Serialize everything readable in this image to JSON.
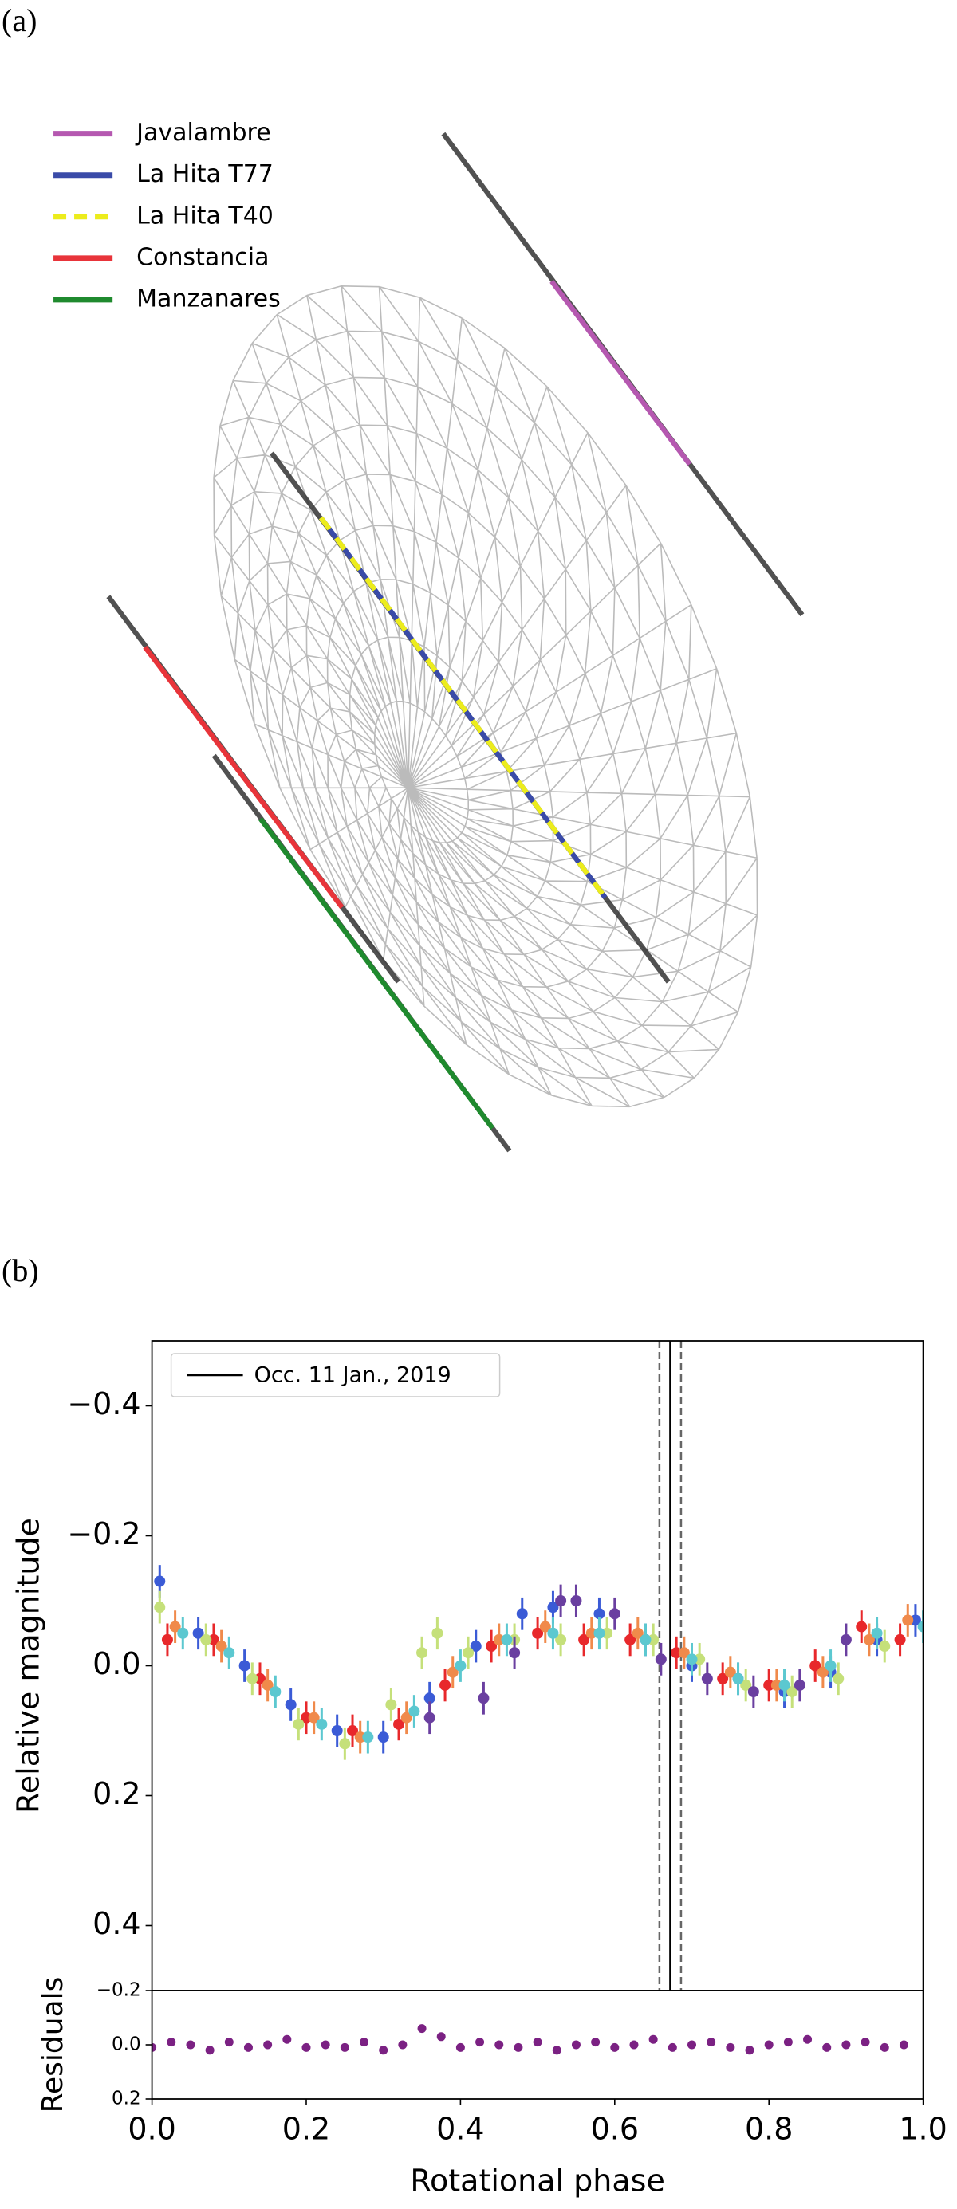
{
  "panel_a": {
    "label": "(a)",
    "legend": [
      {
        "name": "Javalambre",
        "color": "#b558b0",
        "dashed": false
      },
      {
        "name": "La Hita T77",
        "color": "#3a4ba8",
        "dashed": false
      },
      {
        "name": "La Hita T40",
        "color": "#ecec1c",
        "dashed": true
      },
      {
        "name": "Constancia",
        "color": "#e8343a",
        "dashed": false
      },
      {
        "name": "Manzanares",
        "color": "#1f8a2e",
        "dashed": false
      }
    ]
  },
  "chart_data": [
    {
      "type": "scatter",
      "panel_label": "(b)",
      "ylabel": "Relative magnitude",
      "xlim": [
        0,
        1
      ],
      "ylim": [
        0.5,
        -0.5
      ],
      "yticks": [
        {
          "value": -0.4,
          "label": "−0.4"
        },
        {
          "value": -0.2,
          "label": "−0.2"
        },
        {
          "value": 0,
          "label": "0.0"
        },
        0.2,
        0.4
      ],
      "legend": "upper left",
      "occultation": {
        "name": "Occ. 11 Jan., 2019",
        "x": 0.672,
        "x_range": [
          0.658,
          0.686
        ],
        "color": "#000000"
      },
      "series": [
        {
          "color": "#3b5bd6",
          "error": 0.025,
          "x": [
            0.01,
            0.06,
            0.12,
            0.18,
            0.24,
            0.3,
            0.36,
            0.42,
            0.48,
            0.52,
            0.58,
            0.64,
            0.7,
            0.76,
            0.82,
            0.88,
            0.94,
            0.99
          ],
          "values": [
            -0.13,
            -0.05,
            0.0,
            0.06,
            0.1,
            0.11,
            0.05,
            -0.03,
            -0.08,
            -0.09,
            -0.08,
            -0.04,
            0.0,
            0.02,
            0.04,
            0.01,
            -0.04,
            -0.07
          ]
        },
        {
          "color": "#e8282b",
          "error": 0.025,
          "x": [
            0.02,
            0.08,
            0.14,
            0.2,
            0.26,
            0.32,
            0.38,
            0.44,
            0.5,
            0.56,
            0.62,
            0.68,
            0.74,
            0.8,
            0.86,
            0.92,
            0.97
          ],
          "values": [
            -0.04,
            -0.04,
            0.02,
            0.08,
            0.1,
            0.09,
            0.03,
            -0.03,
            -0.05,
            -0.04,
            -0.04,
            -0.02,
            0.02,
            0.03,
            0.0,
            -0.06,
            -0.04
          ]
        },
        {
          "color": "#f08a4b",
          "error": 0.025,
          "x": [
            0.03,
            0.09,
            0.15,
            0.21,
            0.27,
            0.33,
            0.39,
            0.45,
            0.51,
            0.57,
            0.63,
            0.69,
            0.75,
            0.81,
            0.87,
            0.93,
            0.98
          ],
          "values": [
            -0.06,
            -0.03,
            0.03,
            0.08,
            0.11,
            0.08,
            0.01,
            -0.04,
            -0.06,
            -0.05,
            -0.05,
            -0.02,
            0.01,
            0.03,
            0.01,
            -0.04,
            -0.07
          ]
        },
        {
          "color": "#c5e07a",
          "error": 0.025,
          "x": [
            0.01,
            0.07,
            0.13,
            0.19,
            0.25,
            0.31,
            0.35,
            0.37,
            0.41,
            0.47,
            0.53,
            0.59,
            0.65,
            0.71,
            0.77,
            0.83,
            0.89,
            0.95
          ],
          "values": [
            -0.09,
            -0.04,
            0.02,
            0.09,
            0.12,
            0.06,
            -0.02,
            -0.05,
            -0.02,
            -0.04,
            -0.04,
            -0.05,
            -0.04,
            -0.01,
            0.03,
            0.04,
            0.02,
            -0.03
          ]
        },
        {
          "color": "#5cc8d0",
          "error": 0.025,
          "x": [
            0.04,
            0.1,
            0.16,
            0.22,
            0.28,
            0.34,
            0.4,
            0.46,
            0.52,
            0.58,
            0.64,
            0.7,
            0.76,
            0.82,
            0.88,
            0.94,
            1.0
          ],
          "values": [
            -0.05,
            -0.02,
            0.04,
            0.09,
            0.11,
            0.07,
            0.0,
            -0.04,
            -0.05,
            -0.05,
            -0.04,
            -0.01,
            0.02,
            0.03,
            0.0,
            -0.05,
            -0.06
          ]
        },
        {
          "color": "#6a3fa0",
          "error": 0.025,
          "x": [
            0.36,
            0.43,
            0.47,
            0.53,
            0.55,
            0.6,
            0.66,
            0.72,
            0.78,
            0.84,
            0.9
          ],
          "values": [
            0.08,
            0.05,
            -0.02,
            -0.1,
            -0.1,
            -0.08,
            -0.01,
            0.02,
            0.04,
            0.03,
            -0.04
          ]
        }
      ]
    },
    {
      "type": "scatter",
      "xlabel": "Rotational phase",
      "ylabel": "Residuals",
      "xlim": [
        0,
        1
      ],
      "ylim": [
        0.2,
        -0.2
      ],
      "xticks": [
        {
          "value": 0,
          "label": "0.0"
        },
        0.2,
        0.4,
        0.6,
        0.8,
        {
          "value": 1,
          "label": "1.0"
        }
      ],
      "yticks": [
        {
          "value": -0.2,
          "label": "−0.2"
        },
        {
          "value": 0,
          "label": "0.0"
        },
        0.2
      ],
      "series": [
        {
          "color": "#7b2183",
          "x": [
            0,
            0.025,
            0.05,
            0.075,
            0.1,
            0.125,
            0.15,
            0.175,
            0.2,
            0.225,
            0.25,
            0.275,
            0.3,
            0.325,
            0.35,
            0.375,
            0.4,
            0.425,
            0.45,
            0.475,
            0.5,
            0.525,
            0.55,
            0.575,
            0.6,
            0.625,
            0.65,
            0.675,
            0.7,
            0.725,
            0.75,
            0.775,
            0.8,
            0.825,
            0.85,
            0.875,
            0.9,
            0.925,
            0.95,
            0.975
          ],
          "values": [
            0.01,
            -0.01,
            0.0,
            0.02,
            -0.01,
            0.01,
            0.0,
            -0.02,
            0.01,
            0.0,
            0.01,
            -0.01,
            0.02,
            0.0,
            -0.06,
            -0.03,
            0.01,
            -0.01,
            0.0,
            0.01,
            -0.01,
            0.02,
            0.0,
            -0.01,
            0.01,
            0.0,
            -0.02,
            0.01,
            0.0,
            -0.01,
            0.01,
            0.02,
            0.0,
            -0.01,
            -0.02,
            0.01,
            0.0,
            -0.01,
            0.01,
            0.0
          ]
        }
      ]
    }
  ]
}
